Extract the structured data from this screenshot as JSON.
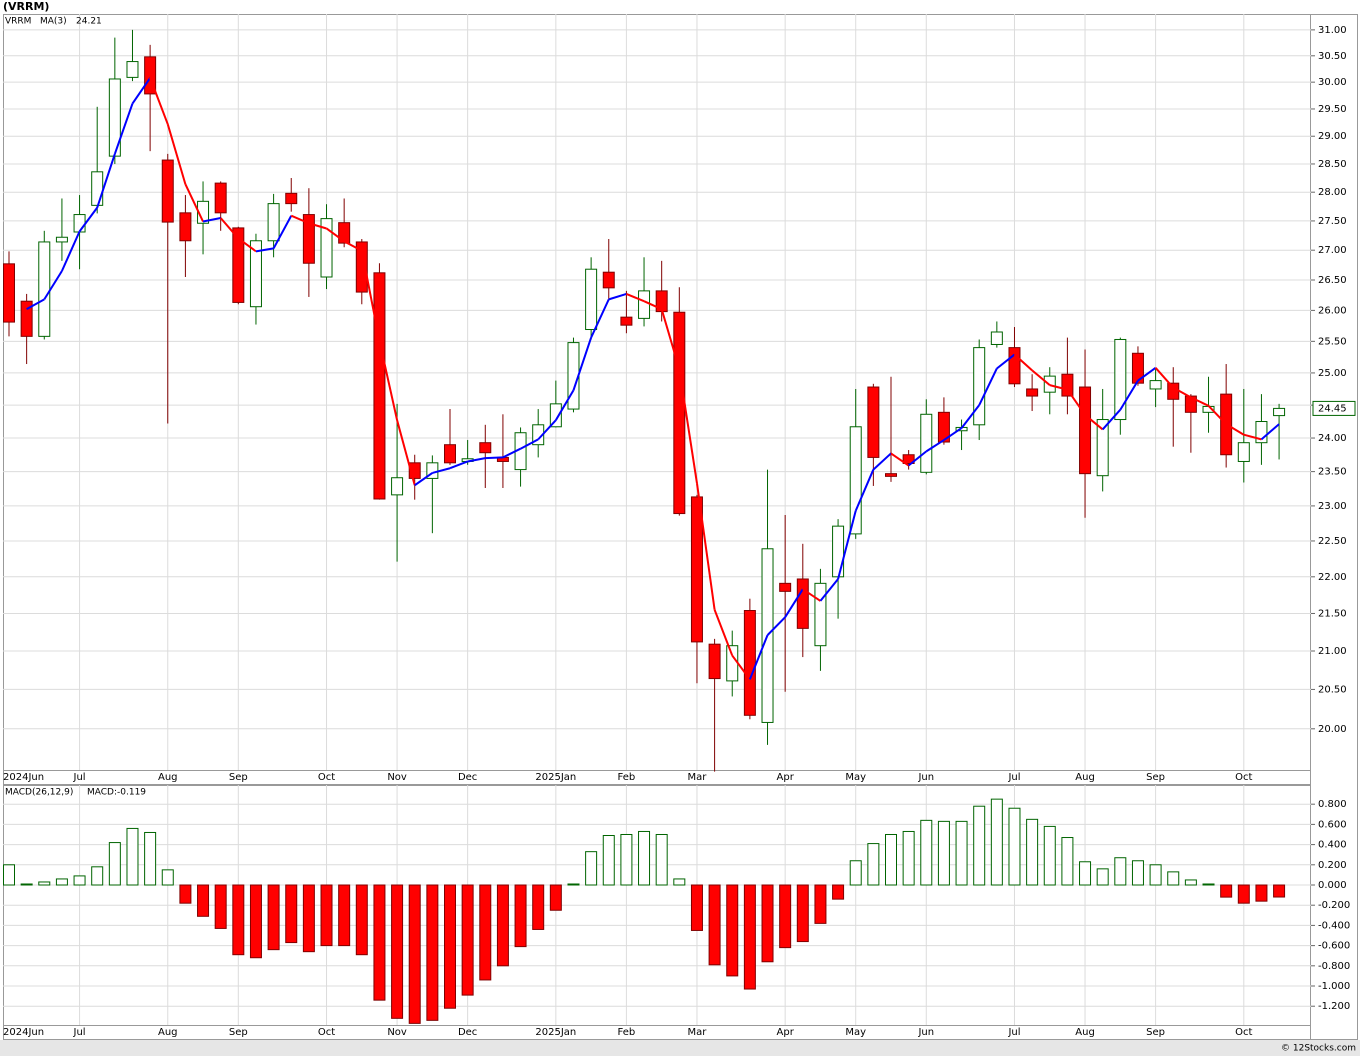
{
  "chart_data": [
    {
      "type": "candlestick",
      "title": "(VRRM)",
      "log_scale": true,
      "grid": true,
      "categories": [
        "2024Jun",
        null,
        null,
        null,
        "Jul",
        null,
        null,
        null,
        null,
        "Aug",
        null,
        null,
        null,
        "Sep",
        null,
        null,
        null,
        null,
        "Oct",
        null,
        null,
        null,
        "Nov",
        null,
        null,
        null,
        "Dec",
        null,
        null,
        null,
        null,
        "2025Jan",
        null,
        null,
        null,
        "Feb",
        null,
        null,
        null,
        "Mar",
        null,
        null,
        null,
        null,
        "Apr",
        null,
        null,
        null,
        "May",
        null,
        null,
        null,
        "Jun",
        null,
        null,
        null,
        null,
        "Jul",
        null,
        null,
        null,
        "Aug",
        null,
        null,
        null,
        "Sep",
        null,
        null,
        null,
        null,
        "Oct",
        null,
        null
      ],
      "series": [
        {
          "name": "VRRM",
          "color_up": "#006400",
          "color_down": "#ff0000",
          "last_label": "24.45",
          "open": [
            26.77,
            26.15,
            25.58,
            27.14,
            27.31,
            27.77,
            28.64,
            30.09,
            30.48,
            28.57,
            27.64,
            27.46,
            28.16,
            27.38,
            26.06,
            27.16,
            27.98,
            27.61,
            26.55,
            27.47,
            27.14,
            26.62,
            23.16,
            23.63,
            23.4,
            23.9,
            23.65,
            23.93,
            23.71,
            23.53,
            23.9,
            24.17,
            24.44,
            25.69,
            26.63,
            25.89,
            25.87,
            26.32,
            25.97,
            23.13,
            21.09,
            20.61,
            21.54,
            20.08,
            21.91,
            21.97,
            21.07,
            22.0,
            22.6,
            24.78,
            23.47,
            23.75,
            23.49,
            24.39,
            24.11,
            24.2,
            25.45,
            25.4,
            24.75,
            24.7,
            24.98,
            24.78,
            23.44,
            24.28,
            25.31,
            24.75,
            24.84,
            24.64,
            24.39,
            24.67,
            23.65,
            23.93,
            24.34
          ],
          "high": [
            26.98,
            26.27,
            27.33,
            27.89,
            27.95,
            29.54,
            30.85,
            31.0,
            30.71,
            28.68,
            27.95,
            28.19,
            28.19,
            27.4,
            27.28,
            27.97,
            28.25,
            28.07,
            27.79,
            27.89,
            27.19,
            26.78,
            24.52,
            23.75,
            23.74,
            24.44,
            23.97,
            24.2,
            24.36,
            24.16,
            24.44,
            24.88,
            25.56,
            26.88,
            27.19,
            26.32,
            26.88,
            26.82,
            26.38,
            23.16,
            21.16,
            21.27,
            21.7,
            23.53,
            22.87,
            22.46,
            22.11,
            22.81,
            24.75,
            24.83,
            24.94,
            23.82,
            24.59,
            24.62,
            24.28,
            25.53,
            25.82,
            25.73,
            24.98,
            25.09,
            25.56,
            25.37,
            24.75,
            25.56,
            25.42,
            25.06,
            25.09,
            24.67,
            24.94,
            25.14,
            24.75,
            24.67,
            24.52
          ],
          "low": [
            25.58,
            25.14,
            25.53,
            26.82,
            26.68,
            27.63,
            28.5,
            30.02,
            28.73,
            24.22,
            26.55,
            26.93,
            27.33,
            26.1,
            25.77,
            26.88,
            27.66,
            26.22,
            26.35,
            27.05,
            26.1,
            23.09,
            22.21,
            23.09,
            22.61,
            23.6,
            23.6,
            23.26,
            23.26,
            23.28,
            23.71,
            24.16,
            24.39,
            25.53,
            26.18,
            25.63,
            25.74,
            25.82,
            22.86,
            20.58,
            19.47,
            20.41,
            20.12,
            19.8,
            20.47,
            20.92,
            20.74,
            21.43,
            22.53,
            23.29,
            23.35,
            23.53,
            23.46,
            23.9,
            23.82,
            23.97,
            25.4,
            24.78,
            24.41,
            24.36,
            24.36,
            22.83,
            23.21,
            24.05,
            24.8,
            24.47,
            23.87,
            23.78,
            24.08,
            23.56,
            23.34,
            23.6,
            23.68
          ],
          "close": [
            25.81,
            25.58,
            27.14,
            27.22,
            27.61,
            28.36,
            30.06,
            30.39,
            29.78,
            27.48,
            27.16,
            27.84,
            27.64,
            26.13,
            27.16,
            27.8,
            27.8,
            26.78,
            27.54,
            27.12,
            26.3,
            23.1,
            23.41,
            23.4,
            23.63,
            23.63,
            23.69,
            23.78,
            23.65,
            24.08,
            24.2,
            24.52,
            25.48,
            26.68,
            26.37,
            25.76,
            26.32,
            25.98,
            22.89,
            21.12,
            20.64,
            21.07,
            20.17,
            22.39,
            21.8,
            21.3,
            21.91,
            22.71,
            24.17,
            23.71,
            23.43,
            23.62,
            24.36,
            23.94,
            24.16,
            25.4,
            25.65,
            24.83,
            24.64,
            24.95,
            24.64,
            23.47,
            24.28,
            25.53,
            24.84,
            24.88,
            24.59,
            24.39,
            24.48,
            23.75,
            23.93,
            24.25,
            24.45
          ]
        },
        {
          "name": "MA(3)",
          "color_up": "#0000ff",
          "color_down": "#ff0000",
          "legend_value": "24.21",
          "values": [
            null,
            26.02,
            26.18,
            26.65,
            27.32,
            27.73,
            28.68,
            29.6,
            30.08,
            29.22,
            28.14,
            27.49,
            27.55,
            27.2,
            26.98,
            27.03,
            27.59,
            27.46,
            27.37,
            27.15,
            26.99,
            25.51,
            24.27,
            23.3,
            23.48,
            23.55,
            23.65,
            23.7,
            23.71,
            23.84,
            23.98,
            24.27,
            24.73,
            25.56,
            26.18,
            26.27,
            26.15,
            26.02,
            25.06,
            23.33,
            21.55,
            20.94,
            20.63,
            21.21,
            21.45,
            21.83,
            21.67,
            21.97,
            22.93,
            23.53,
            23.77,
            23.59,
            23.8,
            23.97,
            24.15,
            24.5,
            25.07,
            25.29,
            25.04,
            24.81,
            24.74,
            24.35,
            24.13,
            24.43,
            24.88,
            25.08,
            24.77,
            24.62,
            24.49,
            24.21,
            24.05,
            23.98,
            24.21
          ]
        }
      ],
      "ylim": [
        19.49,
        31.31
      ],
      "yticks": [
        {
          "value": 31,
          "label": "31.00"
        },
        {
          "value": 30.5,
          "label": "30.50"
        },
        {
          "value": 30,
          "label": "30.00"
        },
        {
          "value": 29.5,
          "label": "29.50"
        },
        {
          "value": 29,
          "label": "29.00"
        },
        {
          "value": 28.5,
          "label": "28.50"
        },
        {
          "value": 28,
          "label": "28.00"
        },
        {
          "value": 27.5,
          "label": "27.50"
        },
        {
          "value": 27,
          "label": "27.00"
        },
        {
          "value": 26.5,
          "label": "26.50"
        },
        {
          "value": 26,
          "label": "26.00"
        },
        {
          "value": 25.5,
          "label": "25.50"
        },
        {
          "value": 25,
          "label": "25.00"
        },
        {
          "value": 24.5,
          "label": "24.50"
        },
        {
          "value": 24,
          "label": "24.00"
        },
        {
          "value": 23.5,
          "label": "23.50"
        },
        {
          "value": 23,
          "label": "23.00"
        },
        {
          "value": 22.5,
          "label": "22.50"
        },
        {
          "value": 22,
          "label": "22.00"
        },
        {
          "value": 21.5,
          "label": "21.50"
        },
        {
          "value": 21,
          "label": "21.00"
        },
        {
          "value": 20.5,
          "label": "20.50"
        },
        {
          "value": 20,
          "label": "20.00"
        }
      ]
    },
    {
      "type": "bar",
      "grid": true,
      "source": "© 12Stocks.com",
      "categories": [
        "2024Jun",
        null,
        null,
        null,
        "Jul",
        null,
        null,
        null,
        null,
        "Aug",
        null,
        null,
        null,
        "Sep",
        null,
        null,
        null,
        null,
        "Oct",
        null,
        null,
        null,
        "Nov",
        null,
        null,
        null,
        "Dec",
        null,
        null,
        null,
        null,
        "2025Jan",
        null,
        null,
        null,
        "Feb",
        null,
        null,
        null,
        "Mar",
        null,
        null,
        null,
        null,
        "Apr",
        null,
        null,
        null,
        "May",
        null,
        null,
        null,
        "Jun",
        null,
        null,
        null,
        null,
        "Jul",
        null,
        null,
        null,
        "Aug",
        null,
        null,
        null,
        "Sep",
        null,
        null,
        null,
        null,
        "Oct",
        null,
        null
      ],
      "series": [
        {
          "name": "MACD(26,12,9)",
          "value_label": "MACD:-0.119",
          "color_up": "#006400",
          "color_down": "#ff0000",
          "values": [
            0.2,
            0.01,
            0.03,
            0.06,
            0.09,
            0.18,
            0.42,
            0.56,
            0.52,
            0.15,
            -0.18,
            -0.31,
            -0.43,
            -0.69,
            -0.72,
            -0.64,
            -0.57,
            -0.66,
            -0.6,
            -0.6,
            -0.69,
            -1.14,
            -1.32,
            -1.37,
            -1.34,
            -1.22,
            -1.09,
            -0.94,
            -0.8,
            -0.61,
            -0.44,
            -0.25,
            0.01,
            0.33,
            0.49,
            0.5,
            0.53,
            0.5,
            0.06,
            -0.45,
            -0.79,
            -0.9,
            -1.03,
            -0.76,
            -0.62,
            -0.56,
            -0.38,
            -0.14,
            0.24,
            0.41,
            0.5,
            0.53,
            0.64,
            0.63,
            0.63,
            0.78,
            0.85,
            0.76,
            0.65,
            0.58,
            0.47,
            0.23,
            0.16,
            0.27,
            0.24,
            0.2,
            0.13,
            0.05,
            0.01,
            -0.12,
            -0.18,
            -0.16,
            -0.119
          ]
        }
      ],
      "ylim": [
        -1.386,
        0.99
      ],
      "yticks": [
        {
          "value": 0.8,
          "label": "0.800"
        },
        {
          "value": 0.6,
          "label": "0.600"
        },
        {
          "value": 0.4,
          "label": "0.400"
        },
        {
          "value": 0.2,
          "label": "0.200"
        },
        {
          "value": 0,
          "label": "0.000"
        },
        {
          "value": -0.2,
          "label": "-0.200"
        },
        {
          "value": -0.4,
          "label": "-0.400"
        },
        {
          "value": -0.6,
          "label": "-0.600"
        },
        {
          "value": -0.8,
          "label": "-0.800"
        },
        {
          "value": -1,
          "label": "-1.000"
        },
        {
          "value": -1.2,
          "label": "-1.200"
        }
      ]
    }
  ]
}
